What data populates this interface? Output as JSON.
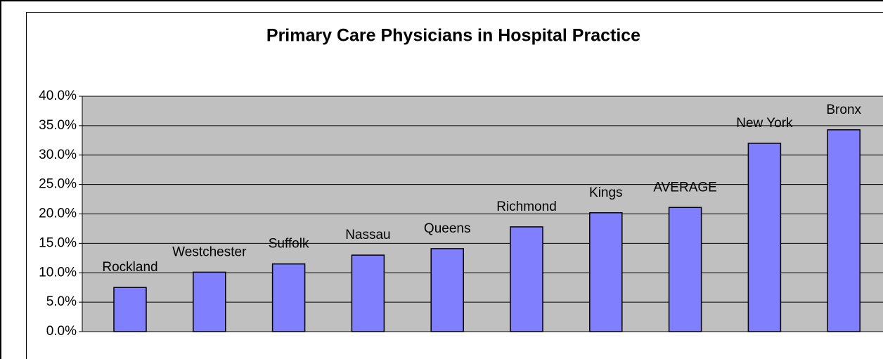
{
  "chart_data": {
    "type": "bar",
    "title": "Primary Care Physicians in Hospital Practice",
    "categories": [
      "Rockland",
      "Westchester",
      "Suffolk",
      "Nassau",
      "Queens",
      "Richmond",
      "Kings",
      "AVERAGE",
      "New York",
      "Bronx"
    ],
    "values": [
      7.5,
      10.1,
      11.5,
      13.0,
      14.1,
      17.8,
      20.2,
      21.1,
      32.0,
      34.3
    ],
    "color": "#8080ff",
    "ylim": [
      0,
      40
    ],
    "yticks": [
      {
        "value": 0,
        "label": "0.0%"
      },
      {
        "value": 5,
        "label": "5.0%"
      },
      {
        "value": 10,
        "label": "10.0%"
      },
      {
        "value": 15,
        "label": "15.0%"
      },
      {
        "value": 20,
        "label": "20.0%"
      },
      {
        "value": 25,
        "label": "25.0%"
      },
      {
        "value": 30,
        "label": "30.0%"
      },
      {
        "value": 35,
        "label": "35.0%"
      },
      {
        "value": 40,
        "label": "40.0%"
      }
    ],
    "grid": true
  }
}
